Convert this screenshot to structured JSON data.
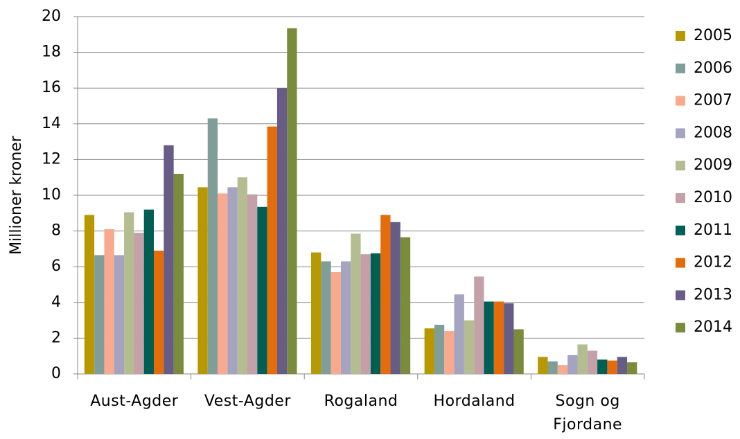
{
  "chart_data": {
    "type": "bar",
    "y_label": "Millioner kroner",
    "categories": [
      "Aust-Agder",
      "Vest-Agder",
      "Rogaland",
      "Hordaland",
      "Sogn og Fjordane"
    ],
    "series": [
      {
        "name": "2005",
        "color": "#b89800",
        "values": [
          8.9,
          10.45,
          6.8,
          2.55,
          0.95
        ]
      },
      {
        "name": "2006",
        "color": "#7f9e9a",
        "values": [
          6.65,
          14.3,
          6.3,
          2.75,
          0.7
        ]
      },
      {
        "name": "2007",
        "color": "#f9a98e",
        "values": [
          8.1,
          10.1,
          5.7,
          2.4,
          0.5
        ]
      },
      {
        "name": "2008",
        "color": "#a4a3c0",
        "values": [
          6.65,
          10.45,
          6.3,
          4.45,
          1.05
        ]
      },
      {
        "name": "2009",
        "color": "#b3bd91",
        "values": [
          9.05,
          11.0,
          7.85,
          3.0,
          1.65
        ]
      },
      {
        "name": "2010",
        "color": "#c4a1a8",
        "values": [
          7.9,
          10.05,
          6.7,
          5.45,
          1.3
        ]
      },
      {
        "name": "2011",
        "color": "#005f55",
        "values": [
          9.2,
          9.35,
          6.75,
          4.05,
          0.8
        ]
      },
      {
        "name": "2012",
        "color": "#e46c0a",
        "values": [
          6.9,
          13.85,
          8.9,
          4.05,
          0.75
        ]
      },
      {
        "name": "2013",
        "color": "#675c86",
        "values": [
          12.8,
          16.0,
          8.5,
          3.95,
          0.95
        ]
      },
      {
        "name": "2014",
        "color": "#7a8b3c",
        "values": [
          11.2,
          19.35,
          7.65,
          2.5,
          0.65
        ]
      }
    ],
    "ylim": [
      0,
      20
    ],
    "yticks": [
      0,
      2,
      4,
      6,
      8,
      10,
      12,
      14,
      16,
      18,
      20
    ],
    "grid": true,
    "legend": "right"
  }
}
